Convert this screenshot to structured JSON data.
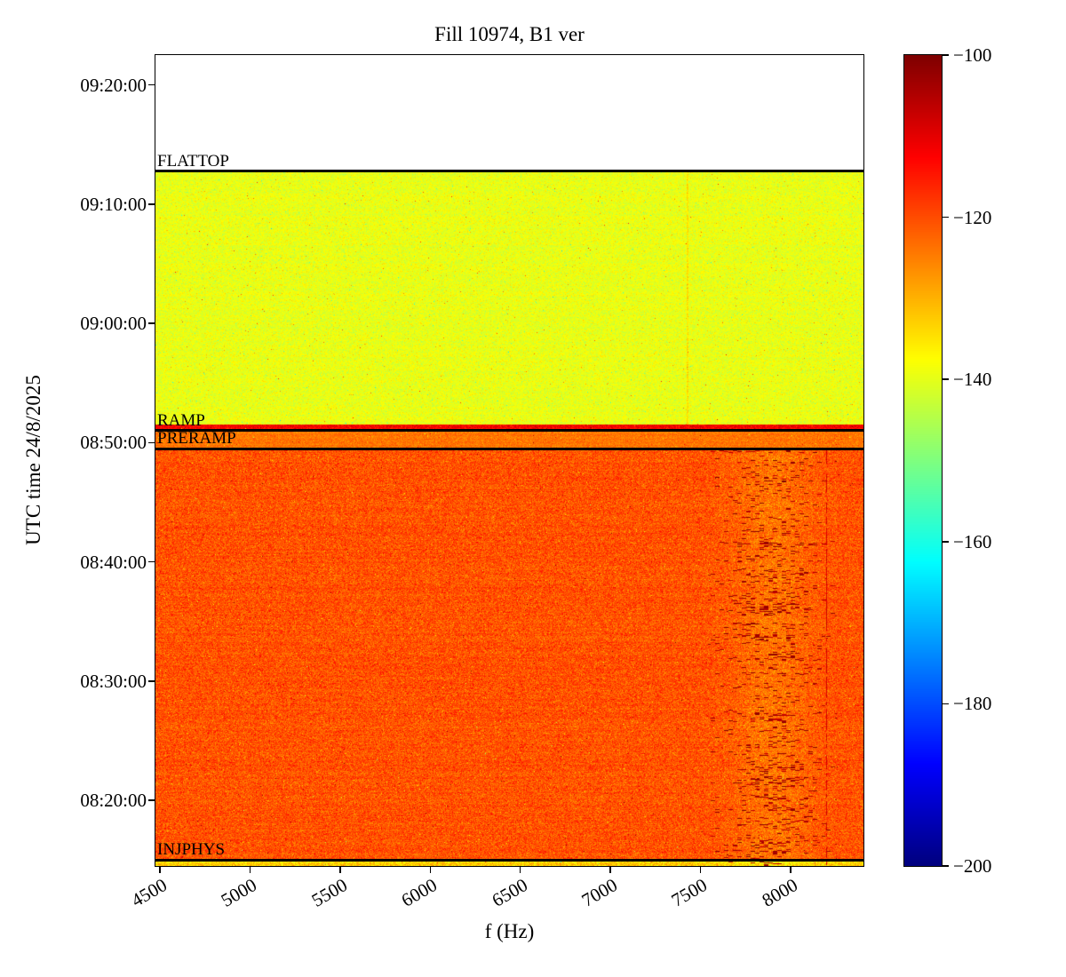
{
  "title": "Fill 10974, B1 ver",
  "xlabel": "f (Hz)",
  "ylabel": "UTC time 24/8/2025",
  "background_color": "#ffffff",
  "chart_data": {
    "type": "heatmap",
    "subtype": "spectrogram",
    "title": "Fill 10974, B1 ver",
    "colormap": "jet",
    "grid": false,
    "x": {
      "label": "f (Hz)",
      "min": 4475,
      "max": 8405,
      "ticks": [
        4500,
        5000,
        5500,
        6000,
        6500,
        7000,
        7500,
        8000
      ],
      "tick_rotation_deg": 30
    },
    "y": {
      "label": "UTC time 24/8/2025",
      "top": "09:22:30",
      "bottom": "08:14:30",
      "ticks": [
        "09:20:00",
        "09:10:00",
        "09:00:00",
        "08:50:00",
        "08:40:00",
        "08:30:00",
        "08:20:00"
      ]
    },
    "colorbar": {
      "colormap": "jet",
      "vmin": -200,
      "vmax": -100,
      "unit": "dB",
      "tick_values": [
        -100,
        -120,
        -140,
        -160,
        -180,
        -200
      ],
      "tick_labels": [
        "−100",
        "−120",
        "−140",
        "−160",
        "−180",
        "−200"
      ],
      "position": "right"
    },
    "annotations": [
      {
        "label": "FLATTOP",
        "time": "09:12:45"
      },
      {
        "label": "RAMP",
        "time": "08:51:00"
      },
      {
        "label": "PRERAMP",
        "time": "08:49:30"
      },
      {
        "label": "INJPHYS",
        "time": "08:15:00"
      }
    ],
    "regions": [
      {
        "name": "no-data",
        "from": "09:12:45",
        "to": "09:22:30",
        "value_db": null,
        "noise_db": 0,
        "description": "blank area above FLATTOP"
      },
      {
        "name": "flattop",
        "from": "08:51:30",
        "to": "09:12:45",
        "value_db": -139.5,
        "noise_db": 2.2,
        "description": "yellow-green noise floor"
      },
      {
        "name": "ramp-start",
        "from": "08:51:00",
        "to": "08:51:30",
        "value_db": -112,
        "noise_db": 2.5,
        "description": "red stripe just above RAMP line"
      },
      {
        "name": "preramp",
        "from": "08:49:30",
        "to": "08:51:00",
        "value_db": -124,
        "noise_db": 2.0,
        "description": "orange band between PRERAMP and RAMP lines"
      },
      {
        "name": "injphys",
        "from": "08:15:00",
        "to": "08:49:30",
        "value_db": -120.5,
        "noise_db": 3.2,
        "description": "orange-red noise region"
      },
      {
        "name": "pre-inj",
        "from": "08:14:30",
        "to": "08:15:00",
        "value_db": -133,
        "noise_db": 3.5,
        "description": "thin yellow band below INJPHYS line"
      }
    ],
    "features": [
      {
        "name": "dark-speckle-band",
        "region": "injphys",
        "f_from": 7650,
        "f_to": 8150,
        "value_db": -104,
        "description": "dark-red horizontal dash speckles"
      },
      {
        "name": "dark-dashed-line",
        "region": "injphys",
        "f": 8200,
        "value_db": -106,
        "description": "thin dark-red dashed vertical line"
      },
      {
        "name": "faint-line",
        "region": "flattop",
        "f": 7430,
        "value_db": -135,
        "description": "faint orange vertical line in green region"
      }
    ]
  }
}
